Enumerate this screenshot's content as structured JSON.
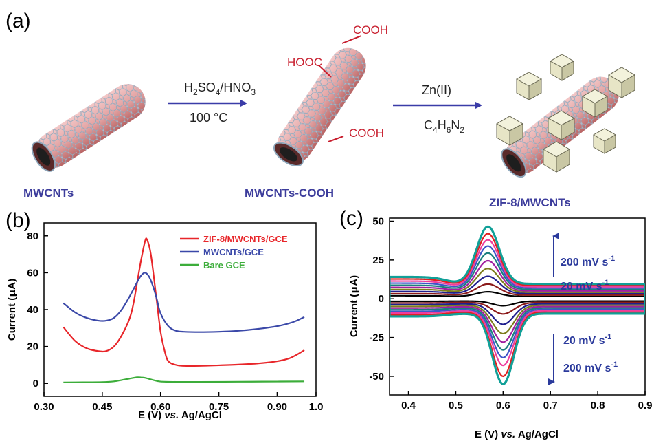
{
  "panel_a": {
    "label": "(a)",
    "steps": [
      {
        "name": "MWCNTs"
      },
      {
        "name": "MWCNTs-COOH"
      },
      {
        "name": "ZIF-8/MWCNTs"
      }
    ],
    "groups": {
      "cooh_top": "COOH",
      "hooc": "HOOC",
      "cooh_bottom": "COOH"
    },
    "arrow1": {
      "reagent_parts": [
        "H",
        "2",
        "SO",
        "4",
        "/HNO",
        "3"
      ],
      "condition": "100 °C"
    },
    "arrow2": {
      "reagent": "Zn(II)",
      "ligand_parts": [
        "C",
        "4",
        "H",
        "6",
        "N",
        "2"
      ]
    },
    "colors": {
      "tube": "#e3a3a3",
      "tube_dark": "#b86464",
      "lattice": "#8ea7bb",
      "label": "#3d3d9c",
      "group": "#c81e2e",
      "arrow": "#3a3ca8",
      "crystal": "#e7e5c6"
    }
  },
  "chart_data": [
    {
      "panel_label": "(b)",
      "type": "line",
      "xlabel": "E (V) vs. Ag/AgCl",
      "xlabel_parts": [
        "E (V) ",
        "vs.",
        " Ag/AgCl"
      ],
      "ylabel": "Current (μA)",
      "ylabel_parts": [
        "Current (",
        "μ",
        "A)"
      ],
      "xlim": [
        0.3,
        1.0
      ],
      "ylim": [
        -7,
        87
      ],
      "xticks": [
        "0.30",
        "0.45",
        "0.60",
        "0.75",
        "0.90",
        "1.0"
      ],
      "xtick_values": [
        0.3,
        0.45,
        0.6,
        0.75,
        0.9,
        1.0
      ],
      "yticks": [
        "0",
        "20",
        "40",
        "60",
        "80"
      ],
      "ytick_values": [
        0,
        20,
        40,
        60,
        80
      ],
      "legend_position": "top-right",
      "series": [
        {
          "name": "ZIF-8/MWCNTs/GCE",
          "color": "#e8262a",
          "x": [
            0.35,
            0.38,
            0.41,
            0.44,
            0.46,
            0.48,
            0.5,
            0.52,
            0.53,
            0.54,
            0.55,
            0.56,
            0.565,
            0.575,
            0.59,
            0.6,
            0.61,
            0.62,
            0.64,
            0.66,
            0.7,
            0.75,
            0.8,
            0.85,
            0.9,
            0.93,
            0.95,
            0.97
          ],
          "y": [
            30.5,
            23,
            19,
            17.5,
            17.5,
            20,
            26,
            35,
            43,
            55,
            67,
            77,
            78,
            70,
            45,
            28,
            18,
            12,
            10,
            9.5,
            9.5,
            9.8,
            10.2,
            10.8,
            12,
            13.5,
            15.5,
            18
          ]
        },
        {
          "name": "MWCNTs/GCE",
          "color": "#3a48a8",
          "x": [
            0.35,
            0.38,
            0.41,
            0.44,
            0.46,
            0.48,
            0.5,
            0.52,
            0.54,
            0.55,
            0.56,
            0.57,
            0.58,
            0.59,
            0.6,
            0.62,
            0.64,
            0.66,
            0.7,
            0.75,
            0.8,
            0.85,
            0.9,
            0.93,
            0.95,
            0.97
          ],
          "y": [
            43.5,
            38.5,
            35.5,
            34,
            34,
            35.5,
            40,
            47,
            55,
            58.5,
            60,
            58,
            53,
            46,
            38,
            31,
            28.5,
            28,
            27.8,
            28,
            28.5,
            29.5,
            31,
            32.5,
            34,
            36
          ]
        },
        {
          "name": "Bare GCE",
          "color": "#3cad3a",
          "x": [
            0.35,
            0.4,
            0.45,
            0.48,
            0.5,
            0.52,
            0.54,
            0.55,
            0.56,
            0.58,
            0.6,
            0.65,
            0.7,
            0.8,
            0.9,
            0.97
          ],
          "y": [
            0.5,
            0.6,
            0.7,
            1.1,
            1.8,
            2.6,
            3.3,
            3.2,
            3.0,
            1.9,
            1.0,
            0.8,
            0.8,
            0.9,
            1.0,
            1.1
          ]
        }
      ]
    },
    {
      "panel_label": "(c)",
      "type": "line",
      "xlabel": "E (V) vs. Ag/AgCl",
      "xlabel_parts": [
        "E (V) ",
        "vs.",
        " Ag/AgCl"
      ],
      "ylabel": "Current (μA)",
      "ylabel_parts": [
        "Current (",
        "μ",
        "A)"
      ],
      "xlim": [
        0.36,
        0.9
      ],
      "ylim": [
        -62,
        52
      ],
      "xticks": [
        "0.4",
        "0.5",
        "0.6",
        "0.7",
        "0.8",
        "0.9"
      ],
      "xtick_values": [
        0.4,
        0.5,
        0.6,
        0.7,
        0.8,
        0.9
      ],
      "yticks": [
        "-50",
        "-25",
        "0",
        "25",
        "50"
      ],
      "ytick_values": [
        -50,
        -25,
        0,
        25,
        50
      ],
      "scan_rates": [
        "20 mV s⁻¹ to 200 mV s⁻¹ (10 cyclic voltammograms)"
      ],
      "annotations": {
        "top_high": [
          "200 mV s",
          "-1"
        ],
        "top_low": [
          "20 mV s",
          "-1"
        ],
        "bottom_low": [
          "20 mV s",
          "-1"
        ],
        "bottom_high": [
          "200 mV s",
          "-1"
        ]
      },
      "series": [
        {
          "color": "#000000",
          "anodic_peak": 4.5,
          "cathodic_peak": -4.5
        },
        {
          "color": "#8b1a1a",
          "anodic_peak": 9.5,
          "cathodic_peak": -9.8
        },
        {
          "color": "#1f1f8e",
          "anodic_peak": 14.5,
          "cathodic_peak": -16.5
        },
        {
          "color": "#7d7d1e",
          "anodic_peak": 19.5,
          "cathodic_peak": -22.5
        },
        {
          "color": "#a020a0",
          "anodic_peak": 24.5,
          "cathodic_peak": -28
        },
        {
          "color": "#1b7f7f",
          "anodic_peak": 29.5,
          "cathodic_peak": -33
        },
        {
          "color": "#3f55c8",
          "anodic_peak": 34,
          "cathodic_peak": -38
        },
        {
          "color": "#ee3c9e",
          "anodic_peak": 38,
          "cathodic_peak": -43
        },
        {
          "color": "#e02020",
          "anodic_peak": 42,
          "cathodic_peak": -50
        },
        {
          "color": "#11a098",
          "anodic_peak": 46.5,
          "cathodic_peak": -55
        }
      ]
    }
  ]
}
